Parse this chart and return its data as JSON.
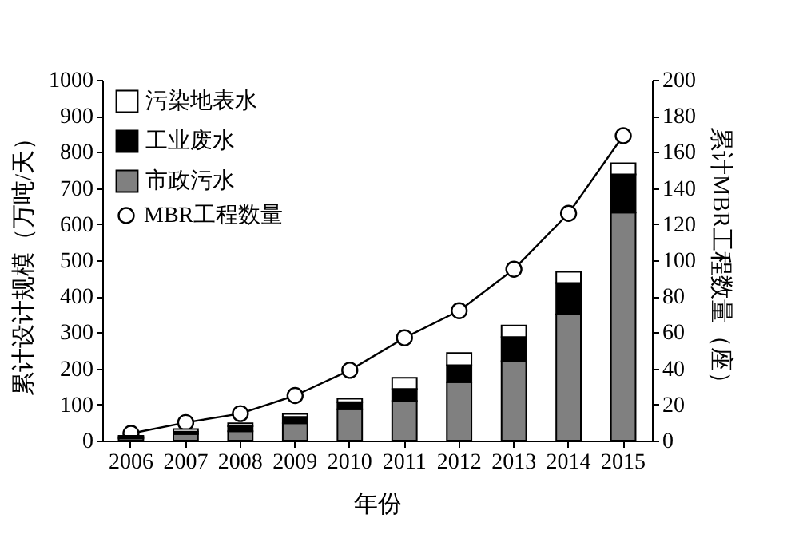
{
  "chart_data": {
    "type": "bar",
    "stacked": true,
    "categories": [
      "2006",
      "2007",
      "2008",
      "2009",
      "2010",
      "2011",
      "2012",
      "2013",
      "2014",
      "2015"
    ],
    "xlabel": "年份",
    "ylabel": "累计设计规模（万吨/天）",
    "y2label": "累计MBR工程数量（座）",
    "series": [
      {
        "name": "市政污水",
        "color": "#808080",
        "values": [
          6,
          18,
          26,
          48,
          87,
          110,
          162,
          220,
          350,
          632
        ]
      },
      {
        "name": "工业废水",
        "color": "#000000",
        "values": [
          4,
          7,
          14,
          18,
          20,
          33,
          47,
          67,
          87,
          106
        ]
      },
      {
        "name": "污染地表水",
        "color": "#ffffff",
        "values": [
          3,
          7,
          8,
          8,
          9,
          31,
          34,
          32,
          31,
          31
        ]
      },
      {
        "name": "MBR工程数量",
        "type": "line",
        "axis": "y2",
        "color": "#000000",
        "marker": "circle",
        "values": [
          4,
          10,
          15,
          25,
          39,
          57,
          72,
          95,
          126,
          169
        ]
      }
    ],
    "ylim": [
      0,
      1000
    ],
    "yticks": [
      0,
      100,
      200,
      300,
      400,
      500,
      600,
      700,
      800,
      900,
      1000
    ],
    "y2lim": [
      0,
      200
    ],
    "y2ticks": [
      0,
      20,
      40,
      60,
      80,
      100,
      120,
      140,
      160,
      180,
      200
    ],
    "legend": "top left",
    "grid": false
  }
}
